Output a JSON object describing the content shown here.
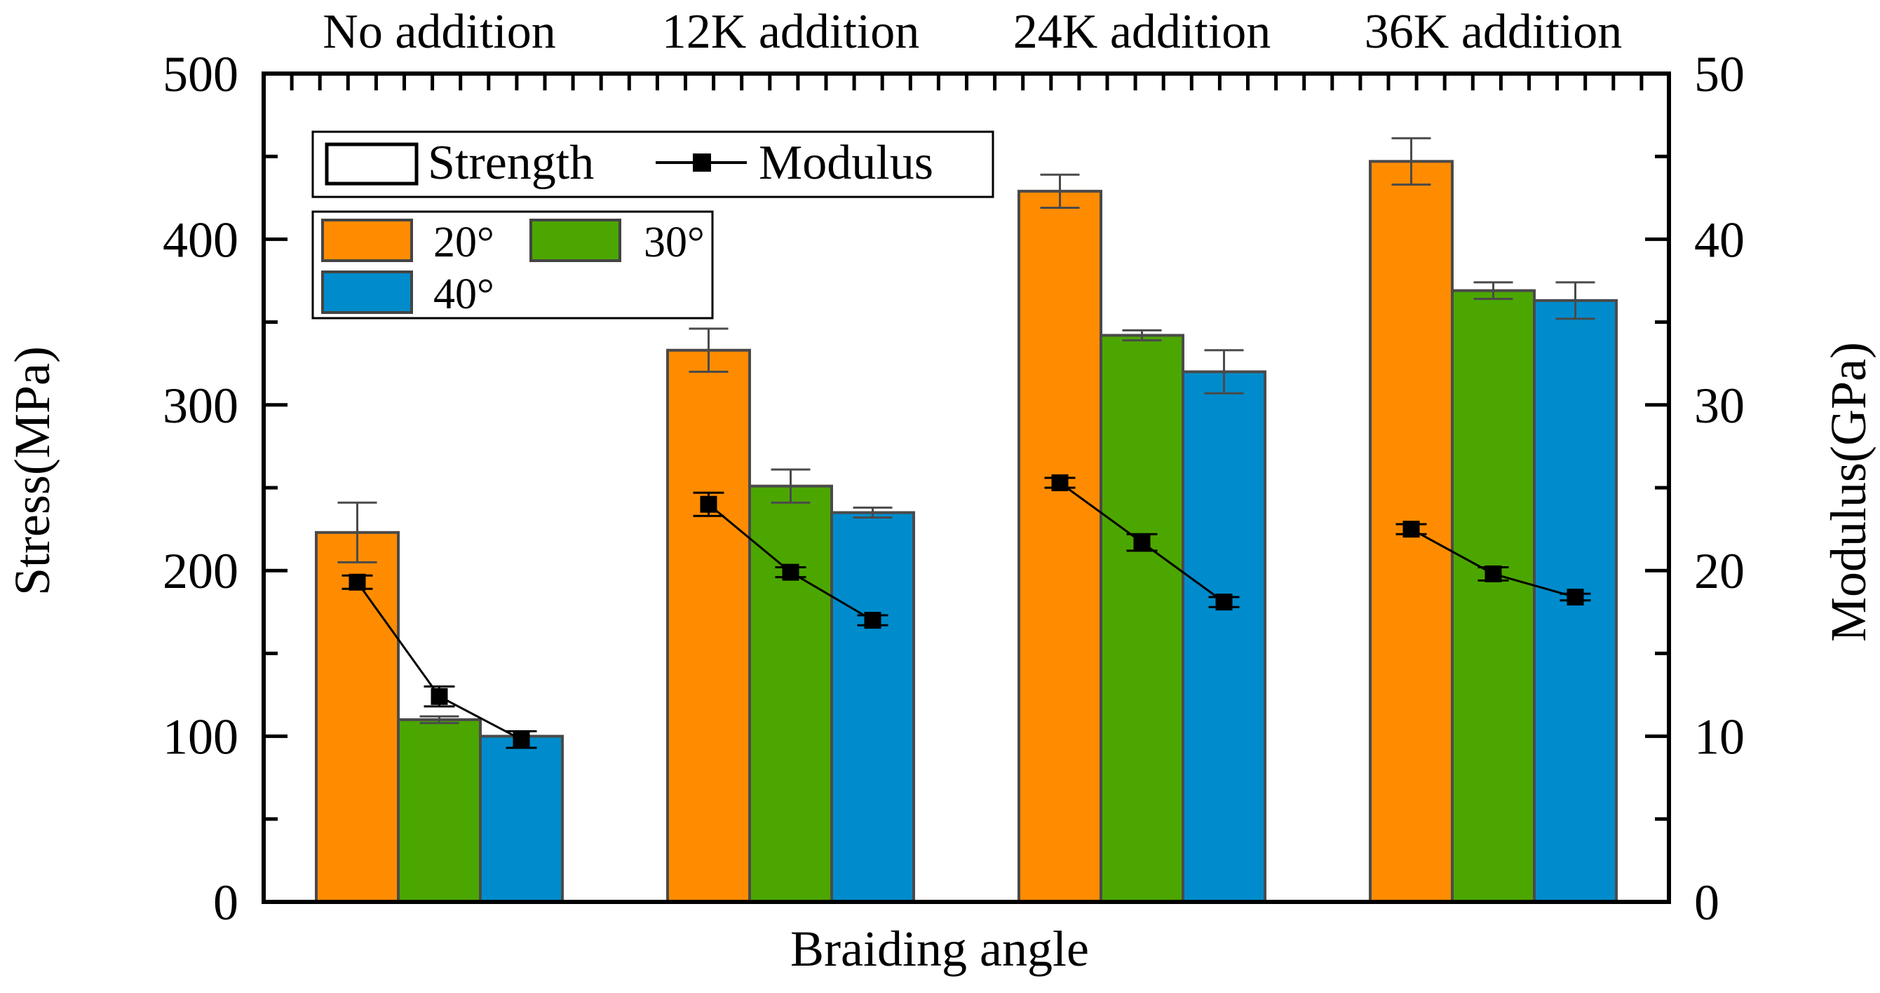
{
  "chart_data": {
    "type": "bar",
    "title": "",
    "groups": [
      "No addition",
      "12K addition",
      "24K addition",
      "36K addition"
    ],
    "xlabel": "Braiding angle",
    "ylabel": "Stress(MPa)",
    "y2label": "Modulus(GPa)",
    "ylim": [
      0,
      500
    ],
    "y2lim": [
      0,
      50
    ],
    "yticks": [
      "0",
      "100",
      "200",
      "300",
      "400",
      "500"
    ],
    "y2ticks": [
      "0",
      "10",
      "20",
      "30",
      "40",
      "50"
    ],
    "legend_type": {
      "strength": "Strength",
      "modulus": "Modulus"
    },
    "series": [
      {
        "name": "20°",
        "color": "#FF8C00",
        "values": [
          223,
          333,
          429,
          447
        ],
        "errors": [
          18,
          13,
          10,
          14
        ]
      },
      {
        "name": "30°",
        "color": "#4CA600",
        "values": [
          110,
          251,
          342,
          369
        ],
        "errors": [
          2,
          10,
          3,
          5
        ]
      },
      {
        "name": "40°",
        "color": "#008CCC",
        "values": [
          100,
          235,
          320,
          363
        ],
        "errors": [
          0,
          3,
          13,
          11
        ]
      }
    ],
    "modulus": {
      "name": "Modulus",
      "values": [
        [
          19.3,
          12.4,
          9.8
        ],
        [
          24.0,
          19.9,
          17.0
        ],
        [
          25.3,
          21.7,
          18.1
        ],
        [
          22.5,
          19.8,
          18.4
        ]
      ],
      "errors": [
        [
          0.4,
          0.6,
          0.5
        ],
        [
          0.7,
          0.3,
          0.3
        ],
        [
          0.3,
          0.5,
          0.3
        ],
        [
          0.3,
          0.4,
          0.2
        ]
      ]
    }
  }
}
